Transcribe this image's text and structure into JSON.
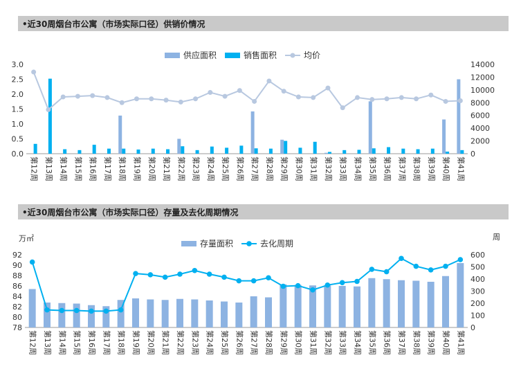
{
  "chart1": {
    "title": "•近30周烟台市公寓（市场实际口径）供销价情况"
  },
  "chart2": {
    "title": "•近30周烟台市公寓（市场实际口径）存量及去化周期情况",
    "left_unit": "万㎡",
    "right_unit": "周"
  },
  "colors": {
    "supply": "#8db3e2",
    "sales": "#00b0f0",
    "price": "#b8c8e0",
    "stock": "#8db3e2",
    "cycle": "#00b0f0"
  },
  "chart_data": [
    {
      "type": "bar",
      "title": "•近30周烟台市公寓（市场实际口径）供销价情况",
      "categories": [
        "第12周",
        "第13周",
        "第14周",
        "第15周",
        "第16周",
        "第17周",
        "第18周",
        "第19周",
        "第20周",
        "第21周",
        "第22周",
        "第23周",
        "第24周",
        "第25周",
        "第26周",
        "第27周",
        "第28周",
        "第29周",
        "第30周",
        "第31周",
        "第32周",
        "第33周",
        "第34周",
        "第35周",
        "第36周",
        "第37周",
        "第38周",
        "第39周",
        "第40周",
        "第41周"
      ],
      "series": [
        {
          "name": "供应面积",
          "axis": "left",
          "values": [
            0,
            0,
            0,
            0,
            0,
            0,
            1.28,
            0,
            0,
            0,
            0.5,
            0,
            0,
            0,
            0,
            1.42,
            0,
            0.47,
            0,
            0,
            0.03,
            0,
            0,
            1.76,
            0,
            0,
            0,
            0,
            1.15,
            2.5
          ]
        },
        {
          "name": "销售面积",
          "axis": "left",
          "values": [
            0.33,
            2.52,
            0.15,
            0.12,
            0.3,
            0.17,
            0.17,
            0.14,
            0.17,
            0.15,
            0.25,
            0.12,
            0.24,
            0.2,
            0.27,
            0.18,
            0.17,
            0.43,
            0.2,
            0.4,
            0.06,
            0.12,
            0.13,
            0.18,
            0.22,
            0.17,
            0.15,
            0.17,
            0.07,
            0.12
          ]
        },
        {
          "name": "均价",
          "type": "line",
          "axis": "right",
          "values": [
            12800,
            6900,
            8900,
            9000,
            9100,
            8800,
            8000,
            8600,
            8600,
            8400,
            8100,
            8600,
            9600,
            9000,
            9900,
            8200,
            11400,
            9800,
            8900,
            8800,
            10300,
            7200,
            8800,
            8500,
            8600,
            8800,
            8600,
            9200,
            8200,
            8300
          ]
        }
      ],
      "yleft": {
        "ticks": [
          "0.0",
          "0.5",
          "1.0",
          "1.5",
          "2.0",
          "2.5",
          "3.0"
        ],
        "ylim": [
          0,
          3
        ]
      },
      "yright": {
        "ticks": [
          "0",
          "2000",
          "4000",
          "6000",
          "8000",
          "10000",
          "12000",
          "14000"
        ],
        "ylim": [
          0,
          14000
        ]
      },
      "legend": "top-right"
    },
    {
      "type": "bar",
      "title": "•近30周烟台市公寓（市场实际口径）存量及去化周期情况",
      "categories": [
        "第12周",
        "第13周",
        "第14周",
        "第15周",
        "第16周",
        "第17周",
        "第18周",
        "第19周",
        "第20周",
        "第21周",
        "第22周",
        "第23周",
        "第24周",
        "第25周",
        "第26周",
        "第27周",
        "第28周",
        "第29周",
        "第30周",
        "第31周",
        "第32周",
        "第33周",
        "第34周",
        "第35周",
        "第36周",
        "第37周",
        "第38周",
        "第39周",
        "第40周",
        "第41周"
      ],
      "series": [
        {
          "name": "存量面积",
          "axis": "left",
          "values": [
            85.4,
            82.8,
            82.7,
            82.6,
            82.3,
            82.1,
            83.3,
            83.6,
            83.4,
            83.3,
            83.5,
            83.4,
            83.2,
            83.0,
            82.8,
            84.0,
            83.8,
            86.3,
            86.2,
            86.1,
            86.1,
            86.0,
            85.9,
            87.5,
            87.3,
            87.1,
            87.0,
            86.8,
            87.9,
            90.4
          ]
        },
        {
          "name": "去化周期",
          "type": "line",
          "axis": "right",
          "values": [
            540,
            145,
            140,
            140,
            135,
            135,
            145,
            445,
            435,
            415,
            440,
            470,
            440,
            415,
            385,
            385,
            410,
            340,
            345,
            310,
            350,
            370,
            380,
            480,
            460,
            570,
            505,
            475,
            505,
            560
          ]
        }
      ],
      "yleft": {
        "ticks": [
          "78",
          "80",
          "82",
          "84",
          "86",
          "88",
          "90",
          "92"
        ],
        "ylim": [
          78,
          92
        ]
      },
      "yright": {
        "ticks": [
          "0",
          "100",
          "200",
          "300",
          "400",
          "500",
          "600"
        ],
        "ylim": [
          0,
          600
        ]
      },
      "legend": "top"
    }
  ]
}
